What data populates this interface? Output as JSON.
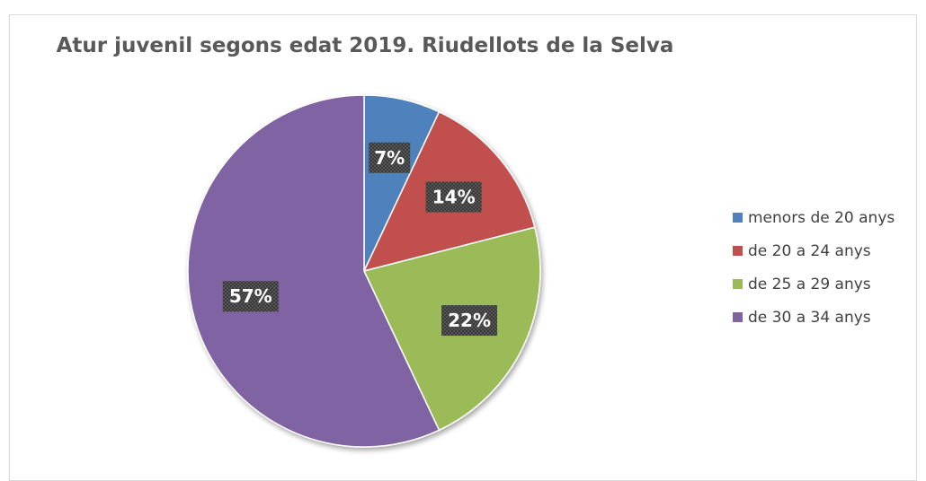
{
  "chart_data": {
    "type": "pie",
    "title": "Atur juvenil segons edat 2019. Riudellots de la Selva",
    "categories": [
      "menors de 20 anys",
      "de 20 a 24 anys",
      "de 25 a 29 anys",
      "de 30 a 34 anys"
    ],
    "values": [
      7,
      14,
      22,
      57
    ],
    "labels": [
      "7%",
      "14%",
      "22%",
      "57%"
    ],
    "colors": [
      "#4f81bd",
      "#c0504d",
      "#9bbb59",
      "#8064a2"
    ],
    "start_angle_deg": 0,
    "direction": "clockwise",
    "legend_position": "right"
  }
}
